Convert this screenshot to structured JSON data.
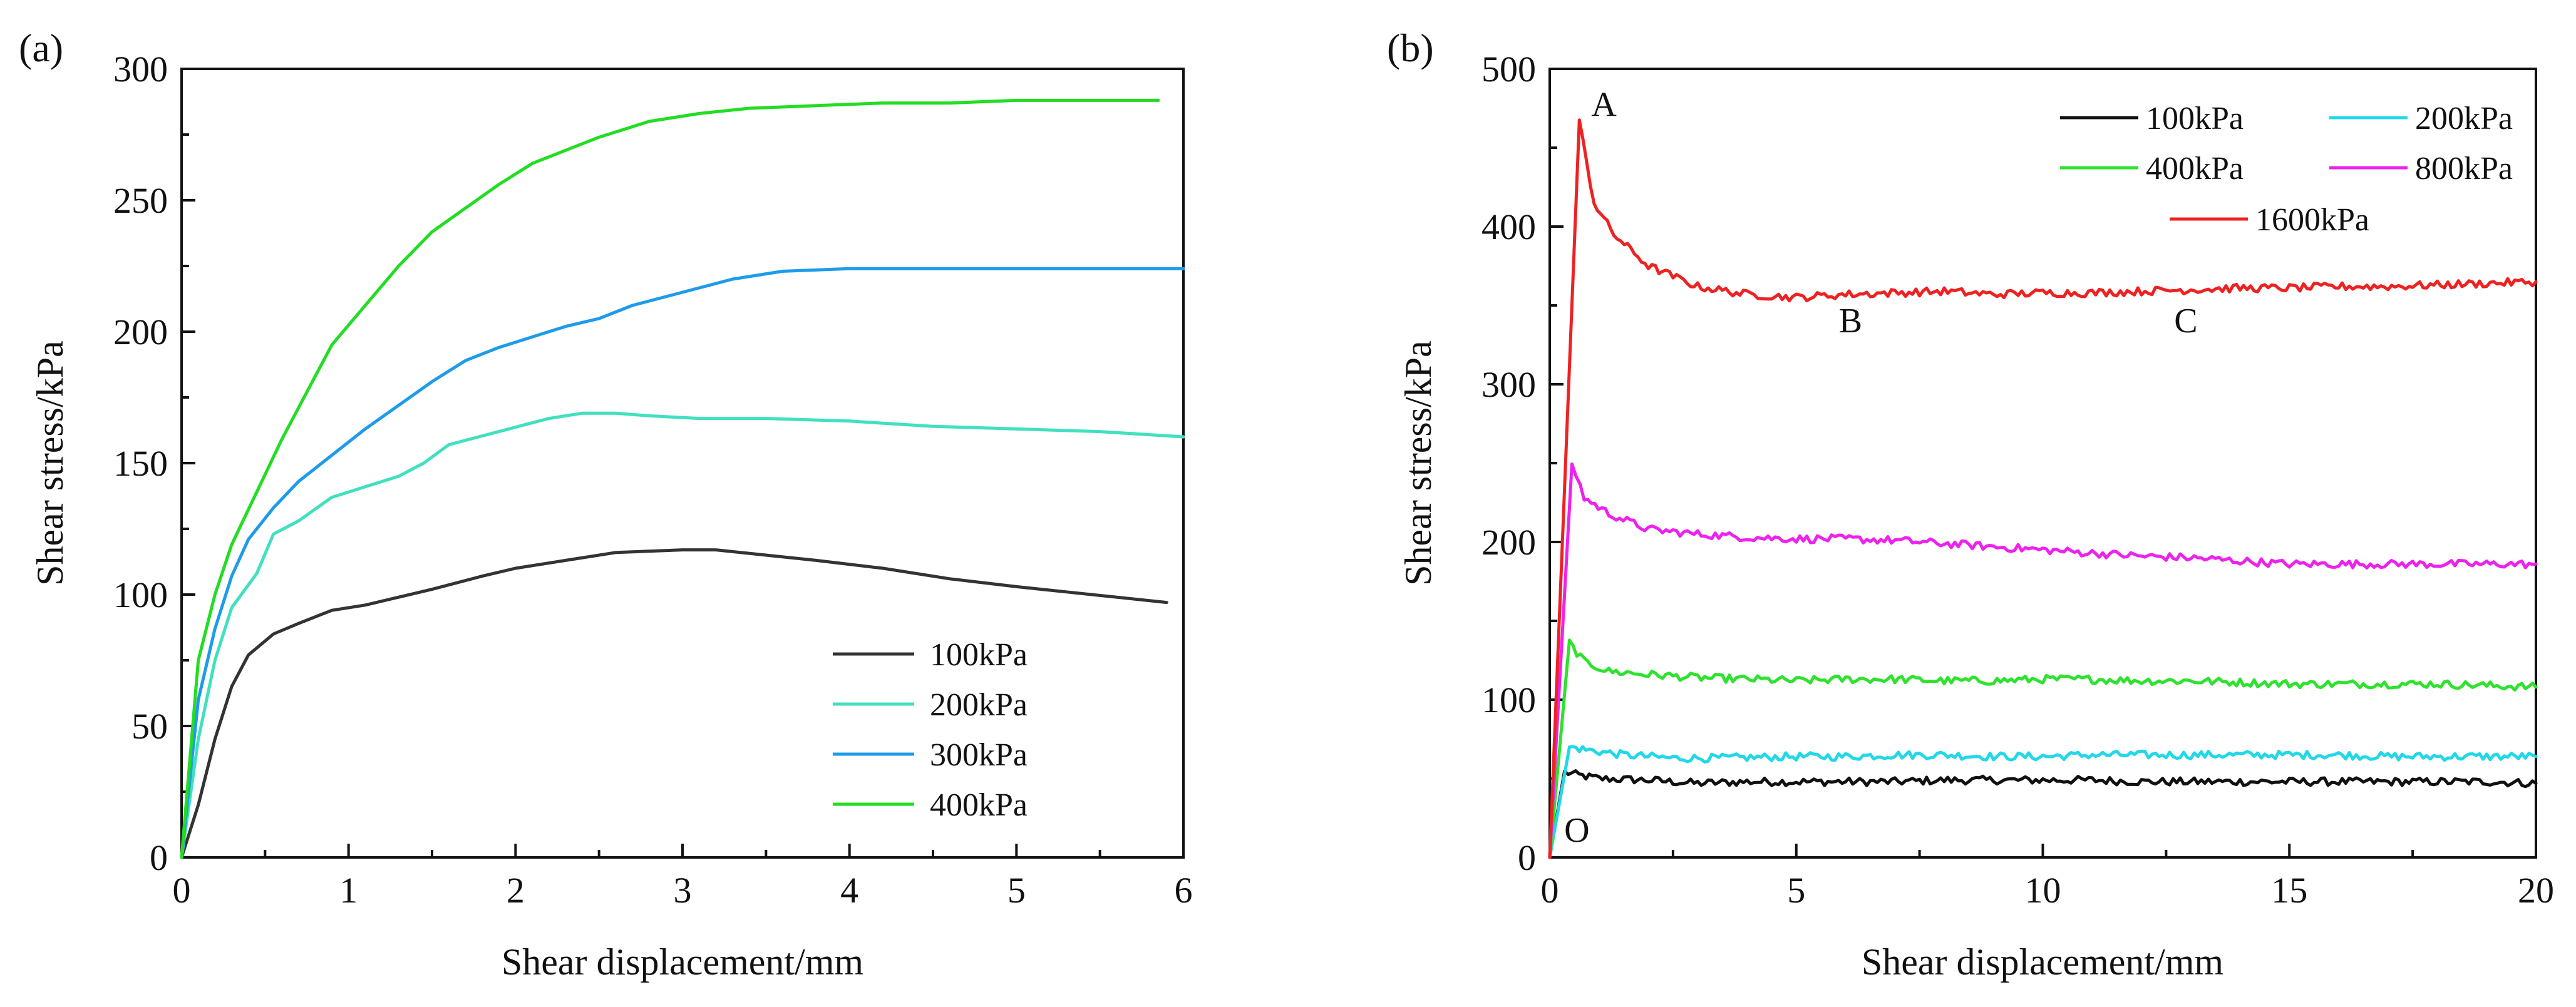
{
  "chart_data": [
    {
      "type": "line",
      "panel_label": "(a)",
      "title": "",
      "xlabel": "Shear displacement/mm",
      "ylabel": "Shear stress/kPa",
      "xlim": [
        0,
        6
      ],
      "ylim": [
        0,
        300
      ],
      "xticks": [
        "0",
        "1",
        "2",
        "3",
        "4",
        "5",
        "6"
      ],
      "yticks": [
        "0",
        "50",
        "100",
        "150",
        "200",
        "250",
        "300"
      ],
      "grid": false,
      "legend_position": "bottom-right",
      "series": [
        {
          "name": "100kPa",
          "color": "#333333",
          "x": [
            0,
            0.1,
            0.2,
            0.3,
            0.4,
            0.55,
            0.7,
            0.9,
            1.1,
            1.3,
            1.5,
            1.8,
            2.0,
            2.3,
            2.6,
            3.0,
            3.2,
            3.5,
            3.8,
            4.2,
            4.6,
            5.0,
            5.3,
            5.6,
            5.9
          ],
          "y": [
            0,
            20,
            45,
            65,
            77,
            85,
            89,
            94,
            96,
            99,
            102,
            107,
            110,
            113,
            116,
            117,
            117,
            115,
            113,
            110,
            106,
            103,
            101,
            99,
            97
          ]
        },
        {
          "name": "200kPa",
          "color": "#40e0c0",
          "x": [
            0,
            0.1,
            0.2,
            0.3,
            0.45,
            0.55,
            0.7,
            0.9,
            1.1,
            1.3,
            1.45,
            1.6,
            1.9,
            2.2,
            2.4,
            2.6,
            2.8,
            3.1,
            3.5,
            4.0,
            4.5,
            5.0,
            5.5,
            6.0
          ],
          "y": [
            0,
            45,
            75,
            95,
            108,
            123,
            128,
            137,
            141,
            145,
            150,
            157,
            162,
            167,
            169,
            169,
            168,
            167,
            167,
            166,
            164,
            163,
            162,
            160
          ]
        },
        {
          "name": "300kPa",
          "color": "#1e9bea",
          "x": [
            0,
            0.1,
            0.2,
            0.3,
            0.4,
            0.55,
            0.7,
            0.9,
            1.1,
            1.3,
            1.5,
            1.7,
            1.9,
            2.1,
            2.3,
            2.5,
            2.7,
            3.0,
            3.3,
            3.6,
            4.0,
            4.5,
            5.0,
            5.5,
            6.0
          ],
          "y": [
            0,
            60,
            87,
            107,
            121,
            133,
            143,
            153,
            163,
            172,
            181,
            189,
            194,
            198,
            202,
            205,
            210,
            215,
            220,
            223,
            224,
            224,
            224,
            224,
            224
          ]
        },
        {
          "name": "400kPa",
          "color": "#22dd22",
          "x": [
            0,
            0.1,
            0.2,
            0.3,
            0.45,
            0.6,
            0.75,
            0.9,
            1.1,
            1.3,
            1.5,
            1.7,
            1.9,
            2.1,
            2.3,
            2.5,
            2.8,
            3.1,
            3.4,
            3.8,
            4.2,
            4.6,
            5.0,
            5.4,
            5.85
          ],
          "y": [
            0,
            75,
            100,
            119,
            139,
            159,
            177,
            195,
            210,
            225,
            238,
            247,
            256,
            264,
            269,
            274,
            280,
            283,
            285,
            286,
            287,
            287,
            288,
            288,
            288
          ]
        }
      ]
    },
    {
      "type": "line",
      "panel_label": "(b)",
      "title": "",
      "xlabel": "Shear displacement/mm",
      "ylabel": "Shear stress/kPa",
      "xlim": [
        0,
        20
      ],
      "ylim": [
        0,
        500
      ],
      "xticks": [
        "0",
        "5",
        "10",
        "15",
        "20"
      ],
      "yticks": [
        "0",
        "100",
        "200",
        "300",
        "400",
        "500"
      ],
      "grid": false,
      "legend_position": "top-right",
      "series": [
        {
          "name": "100kPa",
          "color": "#111111",
          "x": [
            0,
            0.3,
            0.6,
            1.0,
            2.0,
            3.0,
            4.0,
            5.0,
            6.0,
            7.0,
            8.0,
            9.0,
            10.0,
            11.0,
            12.0,
            13.0,
            14.0,
            15.0,
            16.0,
            17.0,
            18.0,
            19.0,
            20.0
          ],
          "y": [
            0,
            54,
            52,
            50,
            49,
            47,
            48,
            48,
            48,
            48,
            49,
            49,
            49,
            49,
            48,
            48,
            48,
            48,
            48,
            48,
            48,
            48,
            47
          ]
        },
        {
          "name": "200kPa",
          "color": "#22d8e8",
          "x": [
            0,
            0.4,
            0.8,
            1.5,
            2.5,
            3.5,
            5.0,
            6.0,
            7.0,
            8.0,
            9.0,
            10.0,
            11.0,
            12.0,
            13.0,
            14.0,
            15.0,
            16.0,
            17.0,
            18.0,
            19.0,
            20.0
          ],
          "y": [
            0,
            70,
            68,
            65,
            63,
            63,
            64,
            64,
            65,
            65,
            64,
            64,
            65,
            65,
            65,
            65,
            65,
            65,
            64,
            64,
            64,
            64
          ]
        },
        {
          "name": "400kPa",
          "color": "#2ee22e",
          "x": [
            0,
            0.4,
            0.7,
            1.2,
            2.0,
            3.0,
            4.0,
            5.0,
            6.0,
            7.0,
            8.0,
            9.0,
            10.0,
            11.0,
            12.0,
            13.0,
            14.0,
            15.0,
            16.0,
            17.0,
            18.0,
            19.0,
            20.0
          ],
          "y": [
            0,
            136,
            124,
            118,
            116,
            114,
            113,
            112,
            113,
            113,
            112,
            112,
            113,
            113,
            112,
            112,
            111,
            110,
            110,
            110,
            110,
            109,
            108
          ]
        },
        {
          "name": "800kPa",
          "color": "#ee22ee",
          "x": [
            0,
            0.45,
            0.7,
            1.2,
            2.0,
            3.0,
            4.0,
            5.0,
            6.0,
            7.0,
            8.0,
            9.0,
            10.0,
            11.0,
            12.0,
            13.0,
            14.0,
            15.0,
            16.0,
            17.0,
            18.0,
            19.0,
            20.0
          ],
          "y": [
            0,
            250,
            228,
            218,
            208,
            205,
            203,
            202,
            202,
            201,
            199,
            197,
            195,
            193,
            191,
            190,
            188,
            186,
            186,
            186,
            186,
            186,
            186
          ]
        },
        {
          "name": "1600kPa",
          "color": "#ee2222",
          "x": [
            0,
            0.6,
            0.9,
            1.3,
            2.0,
            3.0,
            4.0,
            5.0,
            6.0,
            7.0,
            8.0,
            9.0,
            10.0,
            11.0,
            12.0,
            13.0,
            14.0,
            15.0,
            16.0,
            17.0,
            18.0,
            19.0,
            20.0
          ],
          "y": [
            0,
            466,
            415,
            395,
            375,
            362,
            357,
            355,
            357,
            358,
            359,
            357,
            358,
            358,
            359,
            360,
            361,
            361,
            362,
            362,
            363,
            364,
            365
          ]
        }
      ],
      "annotations": [
        {
          "text": "A",
          "x": 1.1,
          "y": 470
        },
        {
          "text": "B",
          "x": 6.1,
          "y": 333
        },
        {
          "text": "C",
          "x": 12.9,
          "y": 333
        },
        {
          "text": "O",
          "x": 0.55,
          "y": 10
        }
      ]
    }
  ]
}
